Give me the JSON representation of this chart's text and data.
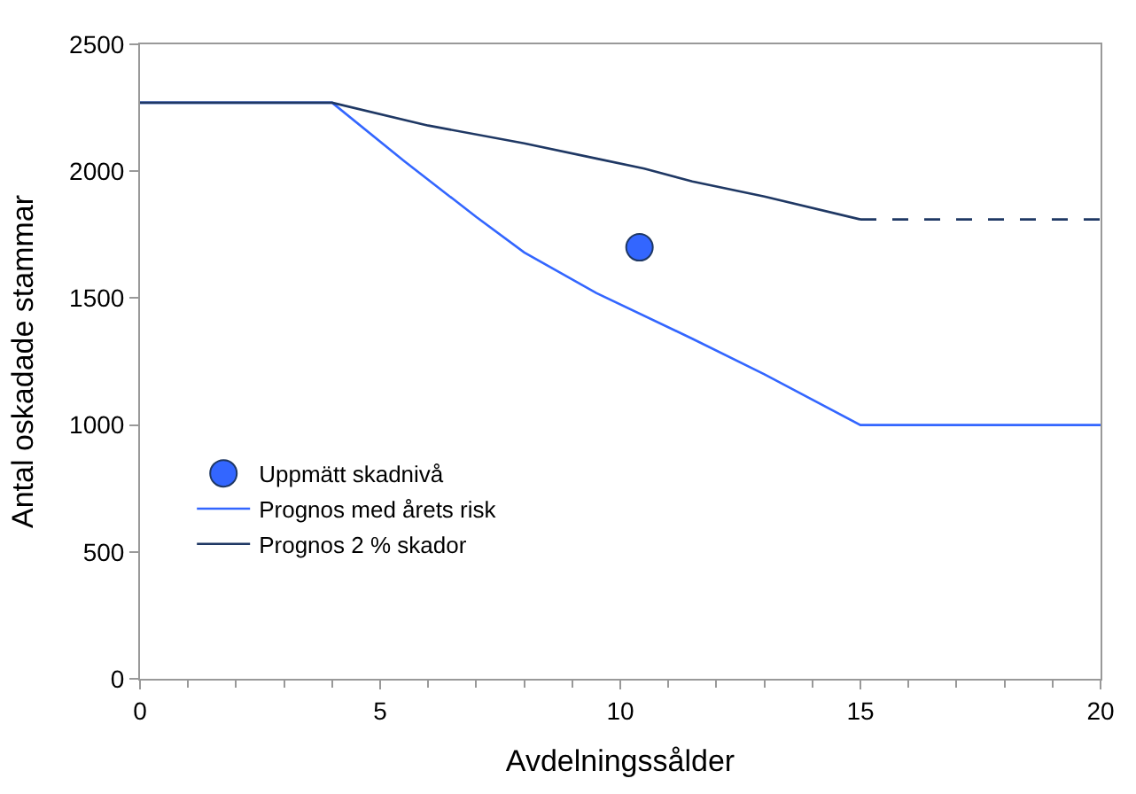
{
  "chart_data": {
    "type": "line",
    "xlabel": "Avdelningssålder",
    "ylabel": "Antal oskadade stammar",
    "xlim": [
      0,
      20
    ],
    "xticks": [
      0,
      5,
      10,
      15,
      20
    ],
    "ylim": [
      0,
      2500
    ],
    "yticks": [
      0,
      500,
      1000,
      1500,
      2000,
      2500
    ],
    "legend": "bottom left",
    "series": [
      {
        "name": "Uppmätt skadnivå",
        "type": "scatter",
        "color": "#3366ff",
        "x": [
          10.4
        ],
        "values": [
          1700
        ]
      },
      {
        "name": "Prognos med årets risk",
        "color": "#3366ff",
        "x": [
          0,
          4,
          5.5,
          7,
          8,
          9.5,
          11.5,
          13,
          15,
          20
        ],
        "values": [
          2270,
          2270,
          2040,
          1820,
          1680,
          1520,
          1340,
          1200,
          1000,
          1000
        ]
      },
      {
        "name": "Prognos 2 % skador",
        "color": "#1f3864",
        "x": [
          0,
          4,
          6,
          8,
          9.5,
          10.5,
          11.5,
          13,
          15
        ],
        "values": [
          2270,
          2270,
          2180,
          2110,
          2050,
          2010,
          1960,
          1900,
          1810
        ]
      },
      {
        "color": "#1f3864",
        "line_style": "dashed",
        "x": [
          15,
          20
        ],
        "values": [
          1810,
          1810
        ]
      }
    ]
  }
}
